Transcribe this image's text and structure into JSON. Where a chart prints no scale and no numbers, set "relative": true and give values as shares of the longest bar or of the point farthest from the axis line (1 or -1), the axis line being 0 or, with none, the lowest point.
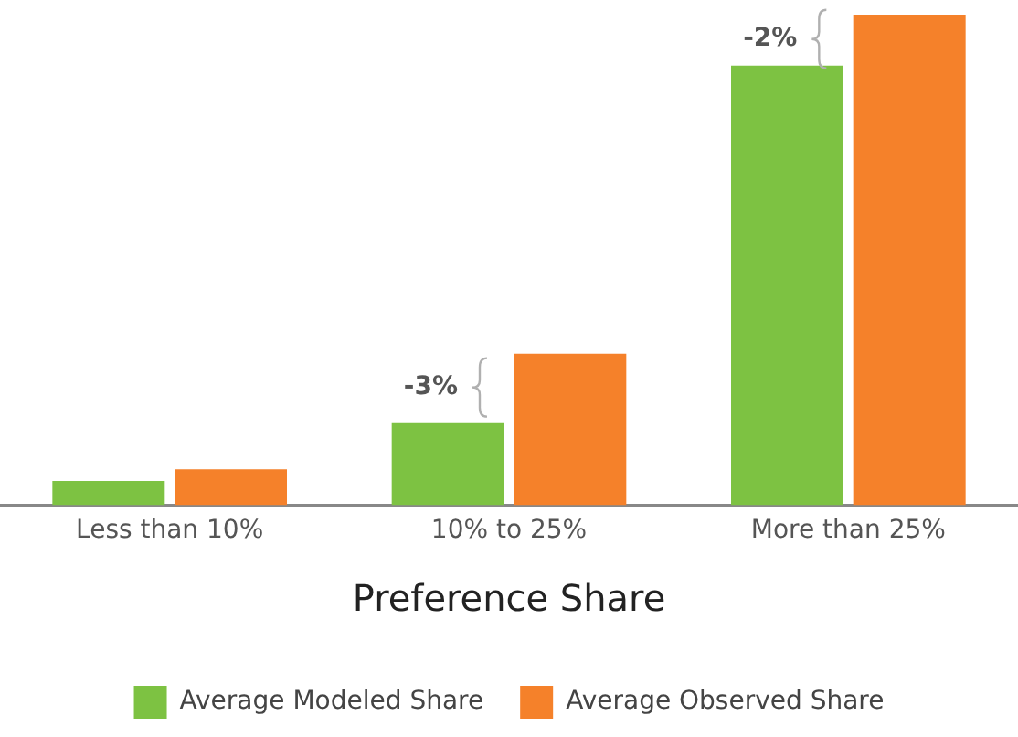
{
  "chart_data": {
    "type": "bar",
    "relative": true,
    "xlabel": "Preference Share",
    "categories": [
      "Less than 10%",
      "10% to 25%",
      "More than 25%"
    ],
    "series": [
      {
        "name": "Average Modeled Share",
        "color": "#7dc242",
        "values": [
          0.049,
          0.167,
          0.896
        ]
      },
      {
        "name": "Average Observed Share",
        "color": "#f5812a",
        "values": [
          0.073,
          0.309,
          1
        ]
      }
    ],
    "annotations": [
      {
        "text": "-3%",
        "x": "10% to 25%",
        "y": 0.24
      },
      {
        "text": "-2%",
        "x": "More than 25%",
        "y": 0.95
      }
    ],
    "grid": false,
    "legend": "bottom"
  }
}
